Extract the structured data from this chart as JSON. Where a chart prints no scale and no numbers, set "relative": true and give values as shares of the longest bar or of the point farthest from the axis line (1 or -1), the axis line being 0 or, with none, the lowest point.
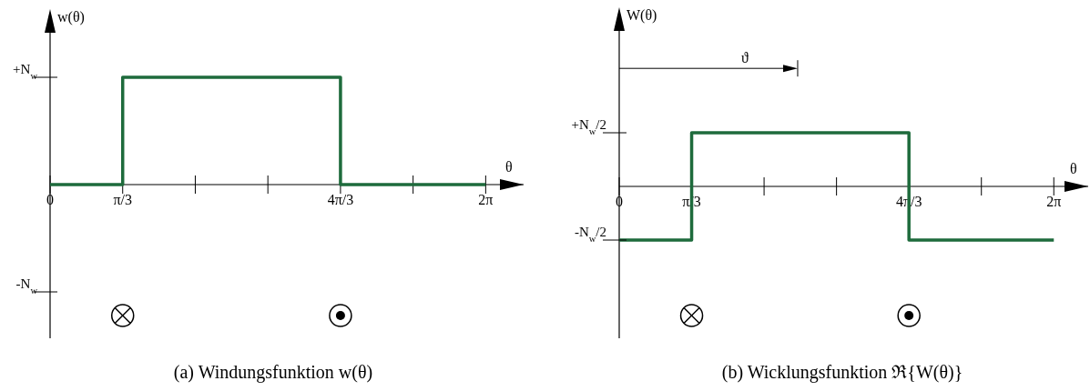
{
  "chart_data": [
    {
      "type": "step",
      "title": "(a) Windungsfunktion w(θ)",
      "xlabel": "θ",
      "ylabel": "w(θ)",
      "relative": true,
      "x": [
        0,
        1.0472,
        4.1888,
        6.2832
      ],
      "values": [
        0,
        1,
        0,
        0
      ],
      "color": "#1e6b3c",
      "xlim": [
        0,
        6.83
      ],
      "xticks": [
        {
          "value": 0,
          "label": "0"
        },
        {
          "value": 1.0472,
          "label": "π/3"
        },
        {
          "value": 2.0944,
          "label": null
        },
        {
          "value": 3.1416,
          "label": null
        },
        {
          "value": 4.1888,
          "label": "4π/3"
        },
        {
          "value": 5.236,
          "label": null
        },
        {
          "value": 6.2832,
          "label": "2π"
        }
      ],
      "annotations": [
        "+N$_{w}$",
        "-N$_{w}$"
      ]
    },
    {
      "type": "step",
      "title": "(b) Wicklungsfunktion ℜ{W(θ)}",
      "xlabel": "θ",
      "ylabel": "W(θ)",
      "relative": true,
      "x": [
        0,
        1.0472,
        4.1888,
        6.2832
      ],
      "values": [
        -1,
        1,
        -1,
        -1
      ],
      "color": "#1e6b3c",
      "xlim": [
        0,
        6.78
      ],
      "xticks": [
        {
          "value": 0,
          "label": "0"
        },
        {
          "value": 1.0472,
          "label": "π/3"
        },
        {
          "value": 2.0944,
          "label": null
        },
        {
          "value": 3.1416,
          "label": null
        },
        {
          "value": 4.1888,
          "label": "4π/3"
        },
        {
          "value": 5.236,
          "label": null
        },
        {
          "value": 6.2832,
          "label": "2π"
        }
      ],
      "annotations": [
        "+N$_{w}$/2",
        "-N$_{w}$/2",
        "ϑ"
      ]
    }
  ]
}
